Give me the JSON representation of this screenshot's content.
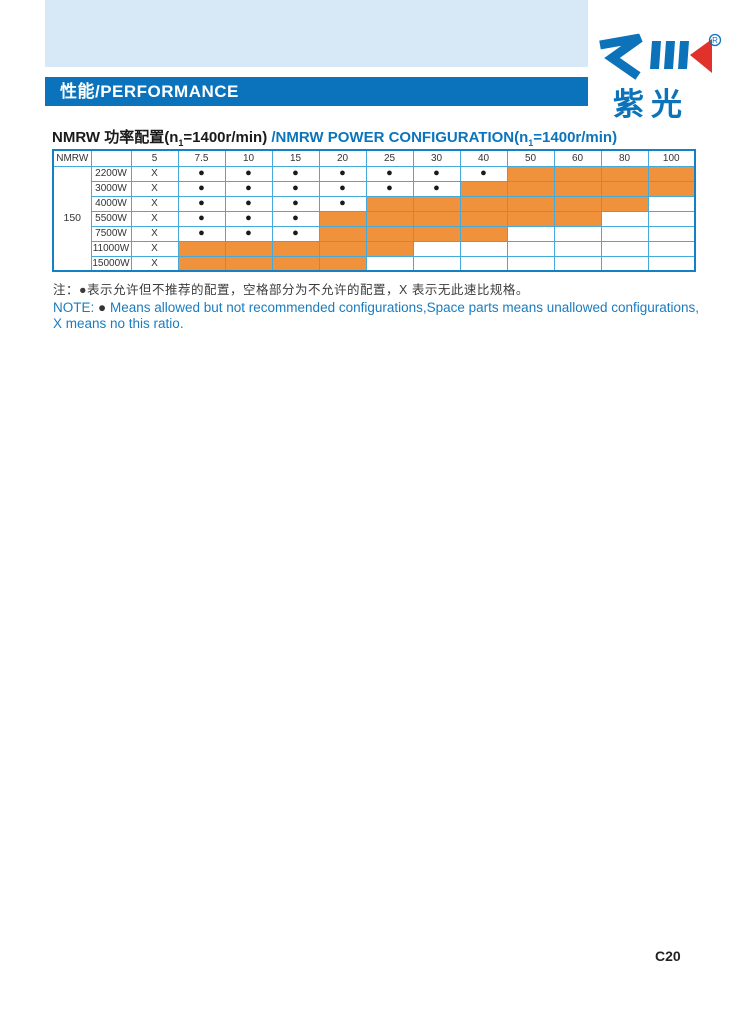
{
  "header": {
    "banner_title": "性能/PERFORMANCE",
    "logo": {
      "brand_mark": "ZIK",
      "registered": "®",
      "brand_cn": "紫光"
    }
  },
  "section_title": {
    "cn_part1": "NMRW 功率配置(n",
    "cn_sub": "1",
    "cn_part2": "=1400r/min) ",
    "en_part1": "/NMRW POWER CONFIGURATION(n",
    "en_sub": "1",
    "en_part2": "=1400r/min)"
  },
  "table": {
    "corner_label": "NMRW",
    "group_label": "150",
    "ratio_headers": [
      "5",
      "7.5",
      "10",
      "15",
      "20",
      "25",
      "30",
      "40",
      "50",
      "60",
      "80",
      "100"
    ],
    "symbols": {
      "allowed": "●",
      "no_ratio": "X"
    },
    "rows": [
      {
        "power": "2200W",
        "cells": [
          "X",
          "dot",
          "dot",
          "dot",
          "dot",
          "dot",
          "dot",
          "dot",
          "orange",
          "orange",
          "orange",
          "orange"
        ]
      },
      {
        "power": "3000W",
        "cells": [
          "X",
          "dot",
          "dot",
          "dot",
          "dot",
          "dot",
          "dot",
          "orange",
          "orange",
          "orange",
          "orange",
          "orange"
        ]
      },
      {
        "power": "4000W",
        "cells": [
          "X",
          "dot",
          "dot",
          "dot",
          "dot",
          "orange",
          "orange",
          "orange",
          "orange",
          "orange",
          "orange",
          ""
        ]
      },
      {
        "power": "5500W",
        "cells": [
          "X",
          "dot",
          "dot",
          "dot",
          "orange",
          "orange",
          "orange",
          "orange",
          "orange",
          "orange",
          "",
          ""
        ]
      },
      {
        "power": "7500W",
        "cells": [
          "X",
          "dot",
          "dot",
          "dot",
          "orange",
          "orange",
          "orange",
          "orange",
          "",
          "",
          "",
          ""
        ]
      },
      {
        "power": "11000W",
        "cells": [
          "X",
          "orange",
          "orange",
          "orange",
          "orange",
          "orange",
          "",
          "",
          "",
          "",
          "",
          ""
        ]
      },
      {
        "power": "15000W",
        "cells": [
          "X",
          "orange",
          "orange",
          "orange",
          "orange",
          "",
          "",
          "",
          "",
          "",
          "",
          ""
        ]
      }
    ]
  },
  "notes": {
    "cn": "注：●表示允许但不推荐的配置，空格部分为不允许的配置，X 表示无此速比规格。",
    "en_label": "NOTE:",
    "en_bullet": "●",
    "en_text": "Means allowed but not recommended configurations,Space parts means unallowed configurations, X means no this ratio."
  },
  "page": {
    "page_number": "C20"
  },
  "colors": {
    "banner_blue": "#0A73BC",
    "light_blue_block": "#D7E9F7",
    "grid_line_blue": "#45A9DC",
    "table_outer_blue": "#1381C3",
    "orange_cell": "#F0913C",
    "logo_blue": "#0C73BA",
    "logo_red": "#E0312A",
    "note_blue": "#1A7CBF"
  }
}
